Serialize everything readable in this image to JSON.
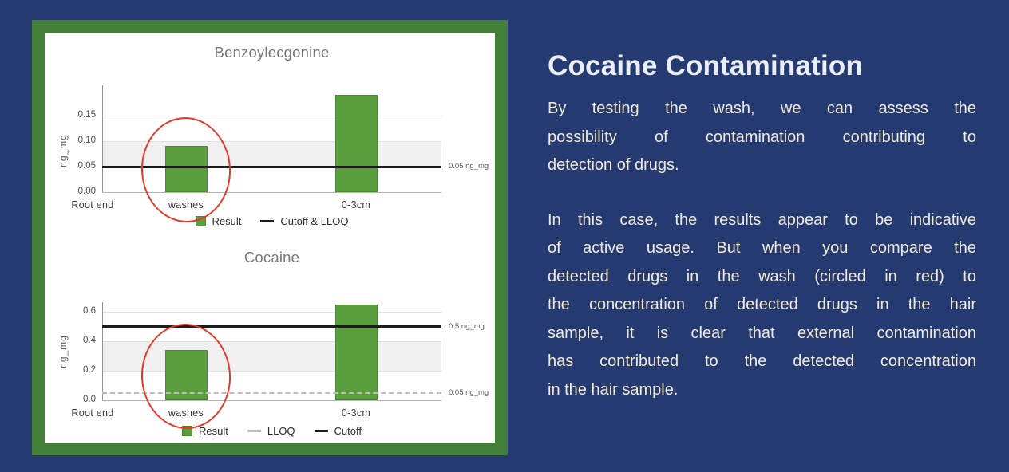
{
  "article": {
    "title": "Cocaine Contamination",
    "paragraphs": [
      [
        "By testing the wash, we can assess the",
        "possibility of contamination contributing to",
        "detection of drugs."
      ],
      [
        "In this case, the results appear to be indicative",
        "of active usage. But when you compare the",
        "detected drugs in the wash (circled in red) to",
        "the concentration of detected drugs in the hair",
        "sample, it is clear that external contamination",
        "has contributed to the detected concentration",
        "in the hair sample."
      ]
    ]
  },
  "colors": {
    "background": "#253a70",
    "panel_border": "#447f3a",
    "bar_fill": "#5b9e3d",
    "bar_stroke": "#4b8a33",
    "cutoff_line": "#1c1c1c",
    "lloq_line": "#bdbdbd",
    "circle": "#e5392b",
    "heading_text": "#e9eef7",
    "body_text": "#f0e9d8"
  },
  "chart_data": [
    {
      "type": "bar",
      "title": "Benzoylecgonine",
      "ylabel": "ng_mg",
      "xlabel": "",
      "categories": [
        "Root end",
        "washes",
        "0-3cm"
      ],
      "values": [
        null,
        0.09,
        0.19
      ],
      "ylim": [
        0,
        0.2
      ],
      "yticks": [
        0,
        0.05,
        0.1,
        0.15
      ],
      "ytick_labels": [
        "0.00",
        "0.05",
        "0.10",
        "0.15"
      ],
      "shaded_band": [
        0.05,
        0.1
      ],
      "grid": true,
      "legend_position": "bottom",
      "reference_lines": [
        {
          "name": "Cutoff & LLOQ",
          "value": 0.05,
          "style": "solid",
          "color": "#1c1c1c",
          "annotation": "0.05 ng_mg"
        }
      ],
      "legend": [
        {
          "label": "Result",
          "swatch": "square",
          "color": "#5b9e3d"
        },
        {
          "label": "Cutoff & LLOQ",
          "swatch": "line",
          "color": "#1c1c1c"
        }
      ],
      "annotation_circle": "washes"
    },
    {
      "type": "bar",
      "title": "Cocaine",
      "ylabel": "ng_mg",
      "xlabel": "",
      "categories": [
        "Root end",
        "washes",
        "0-3cm"
      ],
      "values": [
        null,
        0.34,
        0.65
      ],
      "ylim": [
        0,
        0.66
      ],
      "yticks": [
        0,
        0.2,
        0.4,
        0.6
      ],
      "ytick_labels": [
        "0.0",
        "0.2",
        "0.4",
        "0.6"
      ],
      "shaded_band": [
        0.2,
        0.4
      ],
      "grid": true,
      "legend_position": "bottom",
      "reference_lines": [
        {
          "name": "Cutoff",
          "value": 0.5,
          "style": "solid",
          "color": "#1c1c1c",
          "annotation": "0.5 ng_mg"
        },
        {
          "name": "LLOQ",
          "value": 0.05,
          "style": "dashed",
          "color": "#bdbdbd",
          "annotation": "0.05 ng_mg"
        }
      ],
      "legend": [
        {
          "label": "Result",
          "swatch": "square",
          "color": "#5b9e3d"
        },
        {
          "label": "LLOQ",
          "swatch": "line-gray",
          "color": "#bdbdbd"
        },
        {
          "label": "Cutoff",
          "swatch": "line",
          "color": "#1c1c1c"
        }
      ],
      "annotation_circle": "washes"
    }
  ]
}
